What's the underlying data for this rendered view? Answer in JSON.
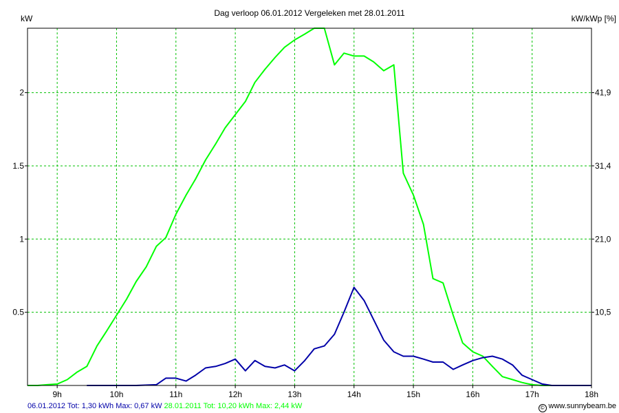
{
  "colors": {
    "series_2012": "#0000a8",
    "series_2011": "#00ff00",
    "grid": "#00c000"
  },
  "footer": {
    "left_2012": "06.01.2012 Tot: 1,30 kWh Max: 0,67 kW",
    "left_2011": "28.01.2011 Tot: 10,20 kWh Max: 2,44 kW",
    "copyright_symbol": "©",
    "site": "www.sunnybeam.be"
  },
  "chart_data": {
    "type": "line",
    "title": "Dag  verloop 06.01.2012   Vergeleken met 28.01.2011",
    "ylabel_left": "kW",
    "ylabel_right": "kW/kWp [%]",
    "xlim": [
      8.5,
      18.0
    ],
    "ylim": [
      0,
      2.44
    ],
    "grid": true,
    "x_ticks": [
      9,
      10,
      11,
      12,
      13,
      14,
      15,
      16,
      17,
      18
    ],
    "x_tick_labels": [
      "9h",
      "10h",
      "11h",
      "12h",
      "13h",
      "14h",
      "15h",
      "16h",
      "17h",
      "18h"
    ],
    "y_ticks_left": [
      0.5,
      1,
      1.5,
      2
    ],
    "y_tick_labels_left": [
      "0.5",
      "1",
      "1.5",
      "2"
    ],
    "y_ticks_right": [
      0.5,
      1,
      1.5,
      2
    ],
    "y_tick_labels_right": [
      "10,5",
      "21,0",
      "31,4",
      "41,9"
    ],
    "series": [
      {
        "name": "28.01.2011",
        "color": "#00ff00",
        "x": [
          8.5,
          8.67,
          8.83,
          9.0,
          9.17,
          9.33,
          9.5,
          9.67,
          9.83,
          10.0,
          10.17,
          10.33,
          10.5,
          10.67,
          10.83,
          11.0,
          11.17,
          11.33,
          11.5,
          11.67,
          11.83,
          12.0,
          12.17,
          12.33,
          12.5,
          12.67,
          12.83,
          13.0,
          13.17,
          13.33,
          13.5,
          13.67,
          13.83,
          14.0,
          14.17,
          14.33,
          14.5,
          14.67,
          14.83,
          15.0,
          15.17,
          15.33,
          15.5,
          15.67,
          15.83,
          16.0,
          16.17,
          16.33,
          16.5,
          16.67,
          16.83,
          17.0,
          17.17,
          17.33,
          17.5,
          18.0
        ],
        "values": [
          0.0,
          0.0,
          0.005,
          0.01,
          0.04,
          0.09,
          0.13,
          0.27,
          0.37,
          0.48,
          0.59,
          0.71,
          0.81,
          0.95,
          1.01,
          1.17,
          1.3,
          1.41,
          1.54,
          1.65,
          1.76,
          1.85,
          1.94,
          2.07,
          2.16,
          2.24,
          2.31,
          2.36,
          2.4,
          2.44,
          2.44,
          2.19,
          2.27,
          2.25,
          2.25,
          2.21,
          2.15,
          2.19,
          1.45,
          1.3,
          1.1,
          0.73,
          0.7,
          0.48,
          0.29,
          0.23,
          0.2,
          0.13,
          0.06,
          0.04,
          0.02,
          0.005,
          0.0,
          0.0,
          0.0,
          0.0
        ]
      },
      {
        "name": "06.01.2012",
        "color": "#0000a8",
        "x": [
          9.5,
          10.0,
          10.33,
          10.67,
          10.83,
          11.0,
          11.17,
          11.33,
          11.5,
          11.67,
          11.83,
          12.0,
          12.17,
          12.33,
          12.5,
          12.67,
          12.83,
          13.0,
          13.17,
          13.33,
          13.5,
          13.67,
          13.83,
          14.0,
          14.17,
          14.33,
          14.5,
          14.67,
          14.83,
          15.0,
          15.17,
          15.33,
          15.5,
          15.67,
          15.83,
          16.0,
          16.17,
          16.33,
          16.5,
          16.67,
          16.83,
          17.0,
          17.17,
          17.33,
          17.5,
          18.0
        ],
        "values": [
          0.0,
          0.0,
          0.0,
          0.005,
          0.05,
          0.05,
          0.03,
          0.07,
          0.12,
          0.13,
          0.15,
          0.18,
          0.1,
          0.17,
          0.13,
          0.12,
          0.14,
          0.1,
          0.17,
          0.25,
          0.27,
          0.35,
          0.5,
          0.67,
          0.58,
          0.45,
          0.31,
          0.23,
          0.2,
          0.2,
          0.18,
          0.16,
          0.16,
          0.11,
          0.14,
          0.17,
          0.19,
          0.2,
          0.18,
          0.14,
          0.07,
          0.04,
          0.01,
          0.0,
          0.0,
          0.0
        ]
      }
    ]
  }
}
